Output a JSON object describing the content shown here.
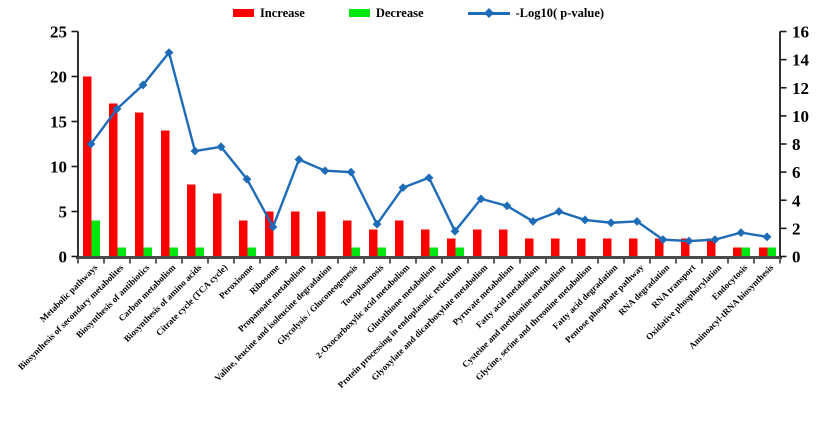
{
  "legend": {
    "increase_label": "Increase",
    "decrease_label": "Decrease",
    "pvalue_label": "-Log10( p-value)"
  },
  "colors": {
    "increase": "#fe0000",
    "decrease": "#00e70e",
    "line": "#1e6bb8",
    "axis": "#1a1a1a",
    "x_axis_line": "#4a4a4a",
    "text": "#000000"
  },
  "chart_data": {
    "type": "bar+line combo",
    "title": "",
    "xlabel": "",
    "ylabel_left": "",
    "ylabel_right": "",
    "grid": false,
    "legend_position": "top-center",
    "ylim_left": [
      0,
      25
    ],
    "ylim_right": [
      0,
      16
    ],
    "left_axis_ticks": [
      0,
      5,
      10,
      15,
      20,
      25
    ],
    "right_axis_ticks": [
      0,
      2,
      4,
      6,
      8,
      10,
      12,
      14,
      16
    ],
    "categories": [
      "Metabolic pathways",
      "Biosynthesis of secondary metabolites",
      "Biosynthesis of antibiotics",
      "Carbon metabolism",
      "Biosynthesis of amino acids",
      "Citrate cycle (TCA cycle)",
      "Peroxisome",
      "Ribosome",
      "Propanoate metabolism",
      "Valine, leucine and isoleucine degradation",
      "Glycolysis / Gluconeogenesis",
      "Toxoplasmosis",
      "2-Oxocarboxylic acid metabolism",
      "Glutathione metabolism",
      "Protein processing in endoplasmic reticulum",
      "Glyoxylate and dicarboxylate metabolism",
      "Pyruvate metabolism",
      "Fatty acid metabolism",
      "Cysteine and methionine metabolism",
      "Glycine, serine and threonine metabolism",
      "Fatty acid degradation",
      "Pentose phosphate pathway",
      "RNA degradation",
      "RNA transport",
      "Oxidative phosphorylation",
      "Endocytosis",
      "Aminoacyl-tRNA biosynthesis"
    ],
    "series": [
      {
        "name": "Increase",
        "type": "bar",
        "axis": "left",
        "color": "#fe0000",
        "values": [
          20,
          17,
          16,
          14,
          8,
          7,
          4,
          5,
          5,
          5,
          4,
          3,
          4,
          3,
          2,
          3,
          3,
          2,
          2,
          2,
          2,
          2,
          2,
          2,
          2,
          1,
          1
        ]
      },
      {
        "name": "Decrease",
        "type": "bar",
        "axis": "left",
        "color": "#00e70e",
        "values": [
          4,
          1,
          1,
          1,
          1,
          0,
          1,
          0,
          0,
          0,
          1,
          1,
          0,
          1,
          1,
          0,
          0,
          0,
          0,
          0,
          0,
          0,
          0,
          0,
          0,
          1,
          1
        ]
      },
      {
        "name": "-Log10( p-value)",
        "type": "line",
        "axis": "right",
        "color": "#1e6bb8",
        "values": [
          8.0,
          10.5,
          12.2,
          14.5,
          7.5,
          7.8,
          5.5,
          2.1,
          6.9,
          6.1,
          6.0,
          2.3,
          4.9,
          5.6,
          1.8,
          4.1,
          3.6,
          2.5,
          3.2,
          2.6,
          2.4,
          2.5,
          1.2,
          1.1,
          1.2,
          1.7,
          1.4
        ]
      }
    ]
  }
}
